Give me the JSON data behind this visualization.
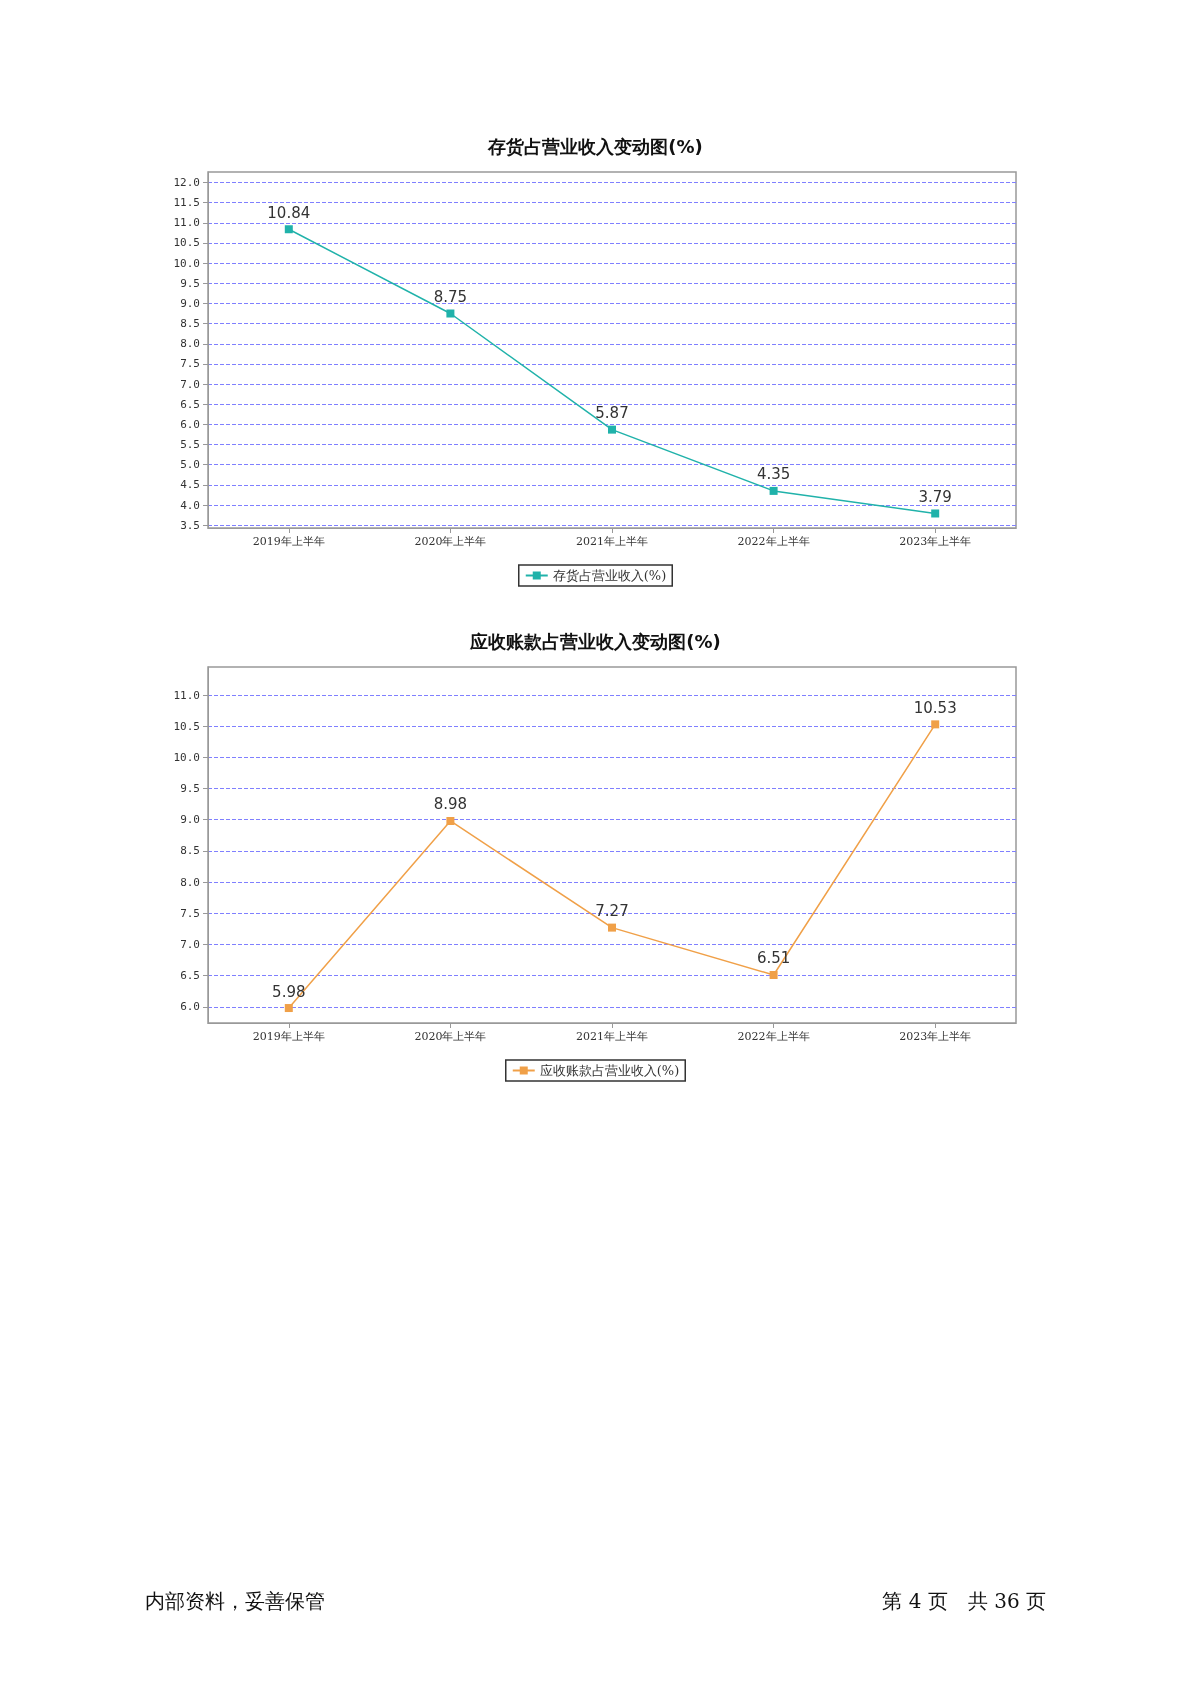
{
  "chart_data": [
    {
      "type": "line",
      "title": "存货占营业收入变动图(%)",
      "categories": [
        "2019年上半年",
        "2020年上半年",
        "2021年上半年",
        "2022年上半年",
        "2023年上半年"
      ],
      "series": [
        {
          "name": "存货占营业收入(%)",
          "color": "#20b2aa",
          "values": [
            10.84,
            8.75,
            5.87,
            4.35,
            3.79
          ]
        }
      ],
      "ylim": [
        3.43,
        12.26
      ],
      "yticks": [
        {
          "value": 3.5,
          "label": "3.5"
        },
        {
          "value": 4,
          "label": "4.0"
        },
        {
          "value": 4.5,
          "label": "4.5"
        },
        {
          "value": 5,
          "label": "5.0"
        },
        {
          "value": 5.5,
          "label": "5.5"
        },
        {
          "value": 6,
          "label": "6.0"
        },
        {
          "value": 6.5,
          "label": "6.5"
        },
        {
          "value": 7,
          "label": "7.0"
        },
        {
          "value": 7.5,
          "label": "7.5"
        },
        {
          "value": 8,
          "label": "8.0"
        },
        {
          "value": 8.5,
          "label": "8.5"
        },
        {
          "value": 9,
          "label": "9.0"
        },
        {
          "value": 9.5,
          "label": "9.5"
        },
        {
          "value": 10,
          "label": "10.0"
        },
        {
          "value": 10.5,
          "label": "10.5"
        },
        {
          "value": 11,
          "label": "11.0"
        },
        {
          "value": 11.5,
          "label": "11.5"
        },
        {
          "value": 12,
          "label": "12.0"
        }
      ],
      "grid": "y",
      "legend": "bottom",
      "marker": "square",
      "line_style": "solid",
      "data_labels": true
    },
    {
      "type": "line",
      "title": "应收账款占营业收入变动图(%)",
      "categories": [
        "2019年上半年",
        "2020年上半年",
        "2021年上半年",
        "2022年上半年",
        "2023年上半年"
      ],
      "series": [
        {
          "name": "应收账款占营业收入(%)",
          "color": "#f0a048",
          "values": [
            5.98,
            8.98,
            7.27,
            6.51,
            10.53
          ]
        }
      ],
      "ylim": [
        5.74,
        11.45
      ],
      "yticks": [
        {
          "value": 6,
          "label": "6.0"
        },
        {
          "value": 6.5,
          "label": "6.5"
        },
        {
          "value": 7,
          "label": "7.0"
        },
        {
          "value": 7.5,
          "label": "7.5"
        },
        {
          "value": 8,
          "label": "8.0"
        },
        {
          "value": 8.5,
          "label": "8.5"
        },
        {
          "value": 9,
          "label": "9.0"
        },
        {
          "value": 9.5,
          "label": "9.5"
        },
        {
          "value": 10,
          "label": "10.0"
        },
        {
          "value": 10.5,
          "label": "10.5"
        },
        {
          "value": 11,
          "label": "11.0"
        }
      ],
      "grid": "y",
      "legend": "bottom",
      "marker": "square",
      "line_style": "solid",
      "data_labels": true,
      "annotations": [
        "内部资料，妥善保管",
        "第 4 页　共 36 页"
      ]
    }
  ]
}
